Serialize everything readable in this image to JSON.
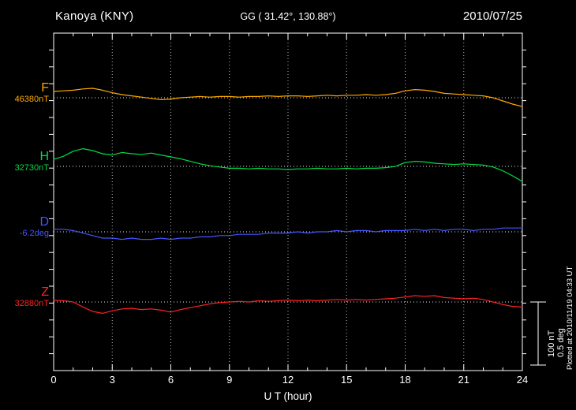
{
  "header": {
    "station": "Kanoya (KNY)",
    "coords": "GG ( 31.42°, 130.88°)",
    "date": "2010/07/25"
  },
  "axis": {
    "xlabel": "U T (hour)",
    "ticks": [
      0,
      3,
      6,
      9,
      12,
      15,
      18,
      21,
      24
    ]
  },
  "scale_bar": {
    "nt_label": "100 nT",
    "deg_label": "0.5 deg"
  },
  "footer_note": "Plotted at 2010/11/19 04:33 UT",
  "colors": {
    "background": "#000000",
    "frame": "#ffffff",
    "gridline": "#bbbbbb",
    "baseline_dots": "#e8e8e8"
  },
  "chart_data": {
    "type": "line",
    "title": "Kanoya (KNY) magnetogram 2010/07/25",
    "xlabel": "U T (hour)",
    "xlim": [
      0,
      24
    ],
    "x_tick_labels": [
      0,
      3,
      6,
      9,
      12,
      15,
      18,
      21,
      24
    ],
    "grid": "dotted vertical at 3-hour intervals; dotted horizontal baseline per trace",
    "legend_position": "left margin, one colored label per trace",
    "scale": {
      "nT_per_division": 100,
      "deg_per_division": 0.5
    },
    "x_hours": [
      0,
      0.5,
      1,
      1.5,
      2,
      2.5,
      3,
      3.5,
      4,
      4.5,
      5,
      5.5,
      6,
      6.5,
      7,
      7.5,
      8,
      8.5,
      9,
      9.5,
      10,
      10.5,
      11,
      11.5,
      12,
      12.5,
      13,
      13.5,
      14,
      14.5,
      15,
      15.5,
      16,
      16.5,
      17,
      17.5,
      18,
      18.5,
      19,
      19.5,
      20,
      20.5,
      21,
      21.5,
      22,
      22.5,
      23,
      23.5,
      24
    ],
    "series": [
      {
        "name": "F",
        "unit": "nT",
        "color": "#ffaa00",
        "baseline_label": "46380nT",
        "baseline_value": 46380,
        "deviation": [
          10,
          11,
          12,
          14,
          15,
          12,
          8,
          5,
          3,
          1,
          -1,
          -3,
          -2,
          0,
          1,
          2,
          1,
          2,
          2,
          1,
          2,
          2,
          3,
          2,
          3,
          3,
          2,
          3,
          4,
          3,
          4,
          4,
          5,
          4,
          5,
          7,
          11,
          13,
          12,
          10,
          7,
          6,
          5,
          4,
          3,
          0,
          -5,
          -10,
          -14
        ]
      },
      {
        "name": "H",
        "unit": "nT",
        "color": "#00dd44",
        "baseline_label": "32730nT",
        "baseline_value": 32730,
        "deviation": [
          11,
          16,
          24,
          28,
          25,
          20,
          18,
          22,
          20,
          19,
          21,
          18,
          15,
          12,
          8,
          4,
          1,
          -1,
          -3,
          -3,
          -4,
          -3,
          -4,
          -4,
          -5,
          -4,
          -4,
          -3,
          -4,
          -4,
          -3,
          -4,
          -3,
          -3,
          -2,
          0,
          6,
          8,
          7,
          5,
          4,
          3,
          4,
          3,
          2,
          -1,
          -7,
          -15,
          -24
        ]
      },
      {
        "name": "D",
        "unit": "deg",
        "color": "#4455ff",
        "baseline_label": "-6.2deg",
        "baseline_value": -6.2,
        "deviation": [
          0.02,
          0.02,
          0.01,
          -0.01,
          -0.03,
          -0.05,
          -0.05,
          -0.06,
          -0.05,
          -0.06,
          -0.06,
          -0.05,
          -0.06,
          -0.05,
          -0.05,
          -0.04,
          -0.04,
          -0.03,
          -0.03,
          -0.02,
          -0.02,
          -0.02,
          -0.01,
          -0.01,
          -0.01,
          0,
          -0.01,
          0,
          0,
          0.01,
          0,
          0.01,
          0.01,
          0,
          0.01,
          0.01,
          0.01,
          0.02,
          0.01,
          0.02,
          0.01,
          0.02,
          0.02,
          0.01,
          0.02,
          0.02,
          0.03,
          0.03,
          0.03
        ]
      },
      {
        "name": "Z",
        "unit": "nT",
        "color": "#ff2222",
        "baseline_label": "32880nT",
        "baseline_value": 32880,
        "deviation": [
          3,
          2,
          0,
          -8,
          -15,
          -18,
          -14,
          -11,
          -10,
          -12,
          -11,
          -13,
          -16,
          -12,
          -9,
          -6,
          -3,
          -1,
          0,
          1,
          0,
          2,
          1,
          2,
          3,
          2,
          3,
          2,
          3,
          4,
          3,
          4,
          3,
          4,
          5,
          6,
          8,
          10,
          9,
          10,
          7,
          6,
          5,
          6,
          4,
          0,
          -4,
          -7,
          -8
        ]
      }
    ]
  }
}
